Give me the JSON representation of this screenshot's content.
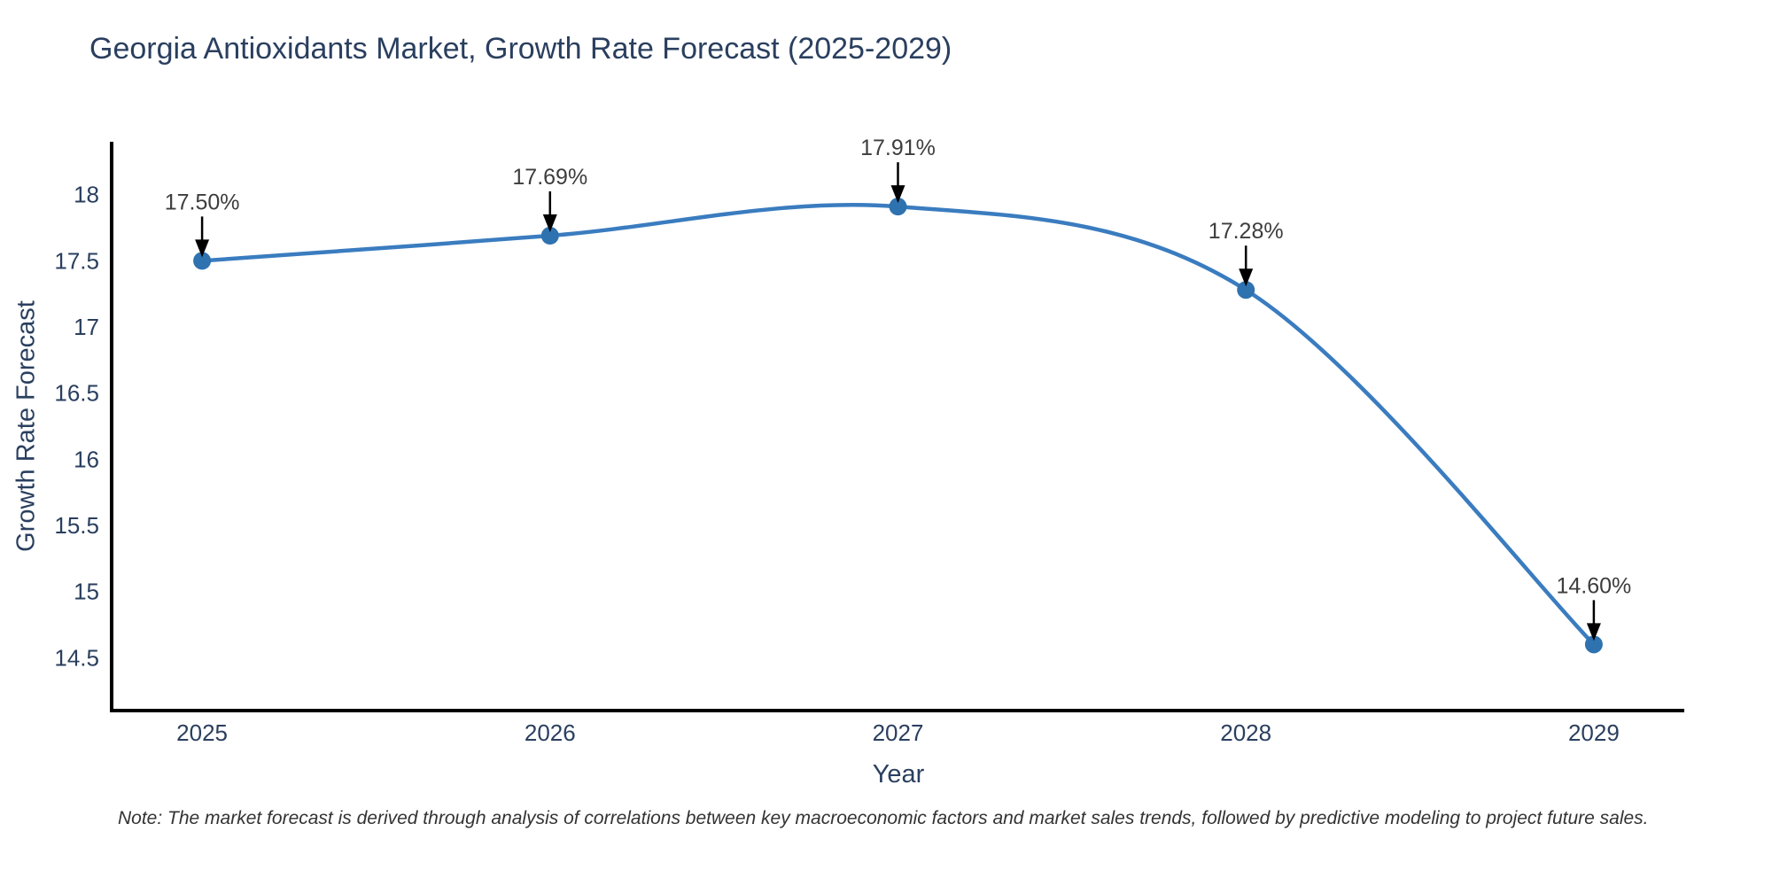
{
  "title": "Georgia Antioxidants Market, Growth Rate Forecast (2025-2029)",
  "note": "Note: The market forecast is derived through analysis of correlations between key macroeconomic factors and market sales trends, followed by predictive modeling to project future sales.",
  "chart_data": {
    "type": "line",
    "title": "Georgia Antioxidants Market, Growth Rate Forecast (2025-2029)",
    "xlabel": "Year",
    "ylabel": "Growth Rate Forecast",
    "x": [
      2025,
      2026,
      2027,
      2028,
      2029
    ],
    "series": [
      {
        "name": "Growth Rate Forecast",
        "values": [
          17.5,
          17.69,
          17.91,
          17.28,
          14.6
        ]
      }
    ],
    "point_labels": [
      "17.50%",
      "17.69%",
      "17.91%",
      "17.28%",
      "14.60%"
    ],
    "xtick_labels": [
      "2025",
      "2026",
      "2027",
      "2028",
      "2029"
    ],
    "ytick_labels": [
      "14.5",
      "15",
      "15.5",
      "16",
      "16.5",
      "17",
      "17.5",
      "18"
    ],
    "xlim": [
      2024.74,
      2029.26
    ],
    "ylim": [
      14.1,
      18.4
    ],
    "grid": false,
    "legend": "none",
    "line_shape": "spline",
    "colors": {
      "line": "#3a7cbf",
      "marker": "#2f72b0",
      "axis": "#000000",
      "tick_text": "#2a3f5f",
      "title_text": "#2a3f5f",
      "annotation_text": "#3d3d3d",
      "arrow": "#000000",
      "background": "#ffffff"
    }
  }
}
